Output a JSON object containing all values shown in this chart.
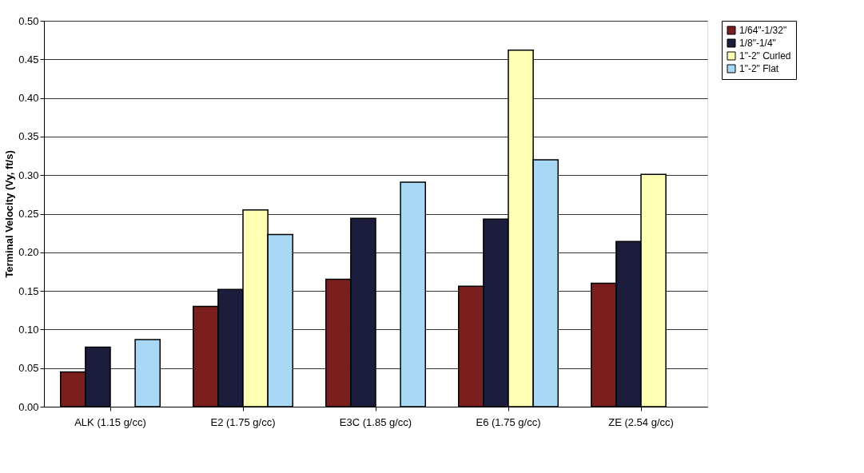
{
  "chart_data": {
    "type": "bar",
    "ylabel": "Terminal Velocity (Vy, ft/s)",
    "categories": [
      "ALK (1.15 g/cc)",
      "E2 (1.75 g/cc)",
      "E3C (1.85 g/cc)",
      "E6 (1.75 g/cc)",
      "ZE (2.54 g/cc)"
    ],
    "series": [
      {
        "name": "1/64\"-1/32\"",
        "color": "#7a1e1e",
        "values": [
          0.045,
          0.13,
          0.165,
          0.156,
          0.16
        ]
      },
      {
        "name": "1/8\"-1/4\"",
        "color": "#1c1c3c",
        "values": [
          0.077,
          0.152,
          0.244,
          0.243,
          0.214
        ]
      },
      {
        "name": "1\"-2\" Curled",
        "color": "#ffffb4",
        "values": [
          null,
          0.255,
          null,
          0.462,
          0.301
        ]
      },
      {
        "name": "1\"-2\" Flat",
        "color": "#a8d8f4",
        "values": [
          0.087,
          0.223,
          0.291,
          0.32,
          null
        ]
      }
    ],
    "ylim": [
      0,
      0.5
    ],
    "yticks": [
      {
        "value": 0,
        "label": "0.00"
      },
      {
        "value": 0.05,
        "label": "0.05"
      },
      {
        "value": 0.1,
        "label": "0.10"
      },
      {
        "value": 0.15,
        "label": "0.15"
      },
      {
        "value": 0.2,
        "label": "0.20"
      },
      {
        "value": 0.25,
        "label": "0.25"
      },
      {
        "value": 0.3,
        "label": "0.30"
      },
      {
        "value": 0.35,
        "label": "0.35"
      },
      {
        "value": 0.4,
        "label": "0.40"
      },
      {
        "value": 0.45,
        "label": "0.45"
      },
      {
        "value": 0.5,
        "label": "0.50"
      }
    ],
    "grid": "y",
    "legend": "right"
  }
}
